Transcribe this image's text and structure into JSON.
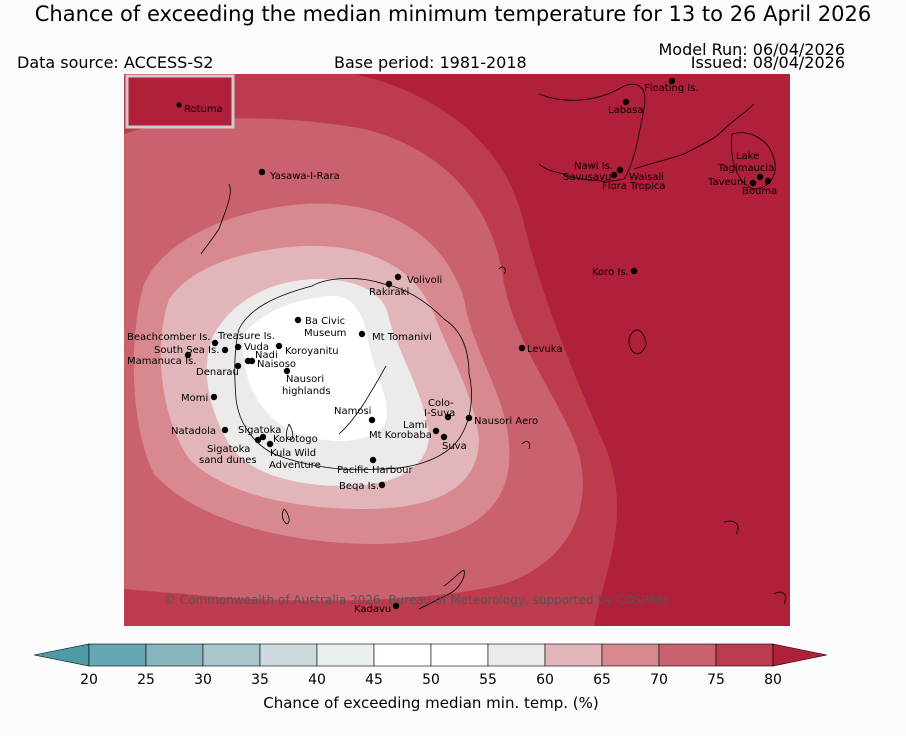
{
  "title": "Chance of exceeding the median minimum temperature for 13 to 26 April 2026",
  "data_source": "Data source: ACCESS-S2",
  "base_period": "Base period: 1981-2018",
  "model_run": "Model Run: 06/04/2026",
  "issued": "Issued: 08/04/2026",
  "copyright": "© Commonwealth of Australia 2026, Bureau of Meteorology, supported by COSPPac",
  "inset_label": "Rotuma",
  "places": [
    "Floating Is.",
    "Labasa",
    "Yasawa-I-Rara",
    "Nawi Is.",
    "Savusavu",
    "Waisali",
    "Flora Tropica",
    "Lake",
    "Tagimaucia",
    "Taveuni",
    "Bouma",
    "Koro Is.",
    "Volivoli",
    "Rakiraki",
    "Ba Civic",
    "Museum",
    "Mt Tomanivi",
    "Beachcomber Is.",
    "Treasure Is.",
    "South Sea Is.",
    "Vuda",
    "Nadi",
    "Mamanuca Is.",
    "Naisoso",
    "Koroyanitu",
    "Denarau",
    "Levuka",
    "Nausori",
    "highlands",
    "Momi",
    "Colo-",
    "I-Suva",
    "Namosi",
    "Nausori Aero",
    "Natadola",
    "Sigatoka",
    "Lami",
    "Korotogo",
    "Mt Korobaba",
    "Sigatoka",
    "sand dunes",
    "Kula Wild",
    "Adventure",
    "Suva",
    "Pacific Harbour",
    "Beqa Is.",
    "Kadavu"
  ],
  "colorbar": {
    "label": "Chance of exceeding median min. temp. (%)",
    "ticks": [
      "20",
      "25",
      "30",
      "35",
      "40",
      "45",
      "50",
      "55",
      "60",
      "65",
      "70",
      "75",
      "80"
    ],
    "colors": [
      "#4c9aa8",
      "#65a8b4",
      "#89b5bf",
      "#a8c6cc",
      "#ccd9dd",
      "#eaeff0",
      "#ffffff",
      "#ffffff",
      "#ecebe9",
      "#e1b5b9",
      "#d8898f",
      "#c9616e",
      "#bc3c4e",
      "#b0203a"
    ]
  }
}
